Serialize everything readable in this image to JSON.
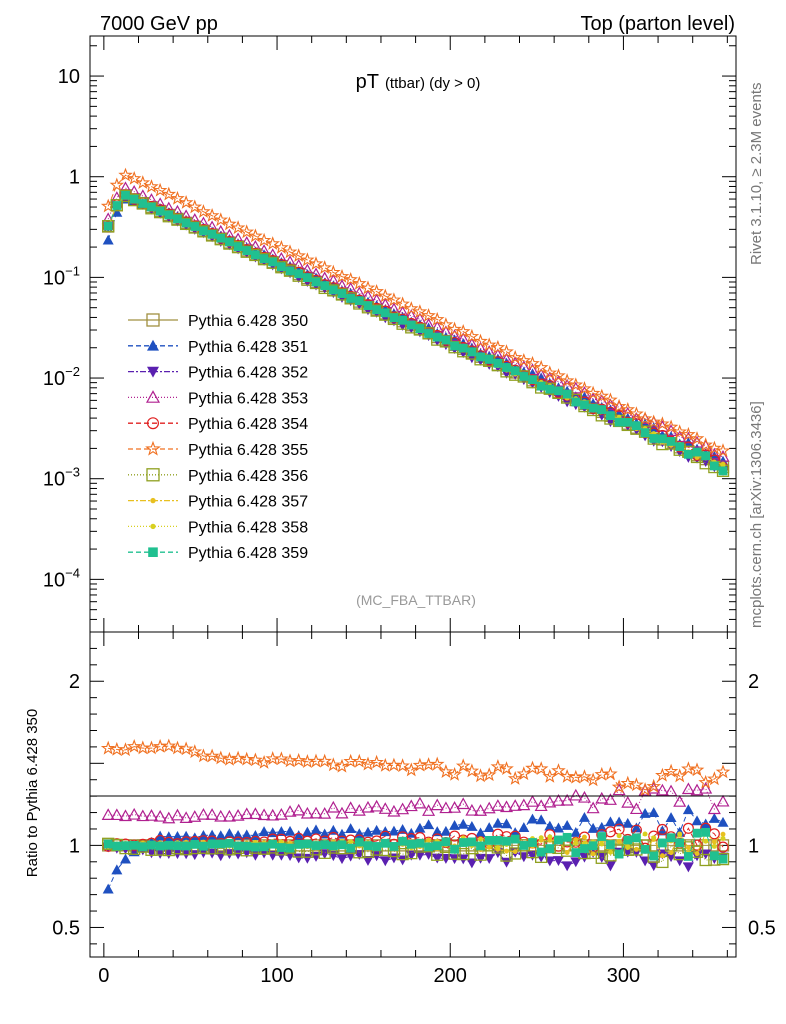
{
  "header": {
    "left": "7000 GeV pp",
    "right": "Top (parton level)"
  },
  "side": {
    "rivet": "Rivet 3.1.10, ≥ 2.3M events",
    "mcplots": "mcplots.cern.ch [arXiv:1306.3436]"
  },
  "chart_data": [
    {
      "type": "scatter",
      "title_main": "pT",
      "title_sub": "(ttbar) (dy > 0)",
      "annotation": "(MC_FBA_TTBAR)",
      "ylabel": "",
      "xlabel": "",
      "yscale": "log",
      "xlim": [
        -8,
        365
      ],
      "ylim": [
        3e-05,
        25
      ],
      "yticks": [
        {
          "value": 10,
          "base": "10",
          "exp": ""
        },
        {
          "value": 1,
          "base": "1",
          "exp": ""
        },
        {
          "value": 0.1,
          "base": "10",
          "exp": "−1"
        },
        {
          "value": 0.01,
          "base": "10",
          "exp": "−2"
        },
        {
          "value": 0.001,
          "base": "10",
          "exp": "−3"
        },
        {
          "value": 0.0001,
          "base": "10",
          "exp": "−4"
        }
      ],
      "legend_position": "left-middle",
      "series": [
        {
          "name": "Pythia 6.428 350",
          "color": "#a09040",
          "marker": "square-open",
          "dash": "",
          "norm": 0.66,
          "ratio": [
            1.0,
            1.0,
            1.0
          ]
        },
        {
          "name": "Pythia 6.428 351",
          "color": "#1f50c0",
          "marker": "triangle-up",
          "dash": "5,3",
          "norm": 0.62,
          "ratio": [
            0.74,
            1.05,
            1.15
          ]
        },
        {
          "name": "Pythia 6.428 352",
          "color": "#5a20b0",
          "marker": "triangle-down",
          "dash": "6,2,2,2",
          "norm": 0.8,
          "ratio": [
            1.0,
            0.95,
            0.9
          ]
        },
        {
          "name": "Pythia 6.428 353",
          "color": "#b02090",
          "marker": "triangle-open",
          "dash": "1,2",
          "norm": 0.78,
          "ratio": [
            1.19,
            1.17,
            1.3
          ]
        },
        {
          "name": "Pythia 6.428 354",
          "color": "#e02020",
          "marker": "circle-open",
          "dash": "5,3",
          "norm": 0.7,
          "ratio": [
            1.0,
            1.02,
            1.05
          ]
        },
        {
          "name": "Pythia 6.428 355",
          "color": "#f07020",
          "marker": "star-open",
          "dash": "5,3",
          "norm": 1.1,
          "ratio": [
            1.6,
            1.55,
            1.38
          ]
        },
        {
          "name": "Pythia 6.428 356",
          "color": "#90a020",
          "marker": "square-open",
          "dash": "1,2",
          "norm": 0.66,
          "ratio": [
            1.0,
            0.98,
            0.95
          ]
        },
        {
          "name": "Pythia 6.428 357",
          "color": "#e8c020",
          "marker": "dot",
          "dash": "6,2,2,2",
          "norm": 0.67,
          "ratio": [
            1.0,
            1.01,
            1.0
          ]
        },
        {
          "name": "Pythia 6.428 358",
          "color": "#d8d020",
          "marker": "dot",
          "dash": "1,2",
          "norm": 0.67,
          "ratio": [
            1.0,
            1.0,
            1.02
          ]
        },
        {
          "name": "Pythia 6.428 359",
          "color": "#20c090",
          "marker": "square",
          "dash": "5,3",
          "norm": 0.67,
          "ratio": [
            1.0,
            1.0,
            1.0
          ]
        }
      ]
    },
    {
      "type": "scatter",
      "ylabel": "Ratio to Pythia 6.428 350",
      "xlabel": "",
      "xlim": [
        -8,
        365
      ],
      "ylim": [
        0.32,
        2.3
      ],
      "xticks": [
        0,
        100,
        200,
        300
      ],
      "yticks": [
        {
          "value": 2,
          "label": "2"
        },
        {
          "value": 1,
          "label": "1"
        },
        {
          "value": 0.5,
          "label": "0.5"
        }
      ]
    }
  ]
}
